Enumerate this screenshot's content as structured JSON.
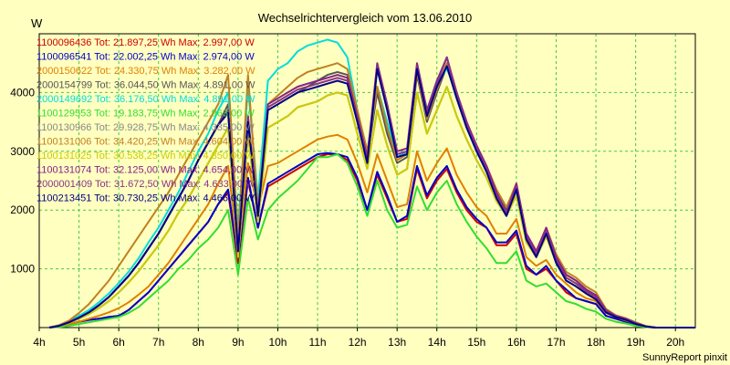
{
  "chart_data": {
    "type": "line",
    "title": "Wechselrichtervergleich vom 13.06.2010",
    "ylabel": "W",
    "footer": "SunnyReport pinxit",
    "ylim": [
      0,
      5000
    ],
    "xlim": [
      4,
      20.5
    ],
    "y_ticks": [
      1000,
      2000,
      3000,
      4000
    ],
    "x_ticks": [
      {
        "v": 4,
        "t": "4h"
      },
      {
        "v": 5,
        "t": "5h"
      },
      {
        "v": 6,
        "t": "6h"
      },
      {
        "v": 7,
        "t": "7h"
      },
      {
        "v": 8,
        "t": "8h"
      },
      {
        "v": 9,
        "t": "9h"
      },
      {
        "v": 10,
        "t": "10h"
      },
      {
        "v": 11,
        "t": "11h"
      },
      {
        "v": 12,
        "t": "12h"
      },
      {
        "v": 13,
        "t": "13h"
      },
      {
        "v": 14,
        "t": "14h"
      },
      {
        "v": 15,
        "t": "15h"
      },
      {
        "v": 16,
        "t": "16h"
      },
      {
        "v": 17,
        "t": "17h"
      },
      {
        "v": 18,
        "t": "18h"
      },
      {
        "v": 19,
        "t": "19h"
      },
      {
        "v": 20,
        "t": "20h"
      }
    ],
    "grid": true,
    "legend_position": "top-left",
    "x": [
      4.25,
      4.5,
      4.75,
      5.0,
      5.25,
      5.5,
      5.75,
      6.0,
      6.25,
      6.5,
      6.75,
      7.0,
      7.25,
      7.5,
      7.75,
      8.0,
      8.25,
      8.5,
      8.75,
      9.0,
      9.25,
      9.5,
      9.75,
      10.0,
      10.25,
      10.5,
      10.75,
      11.0,
      11.25,
      11.5,
      11.75,
      12.0,
      12.25,
      12.5,
      12.75,
      13.0,
      13.25,
      13.5,
      13.75,
      14.0,
      14.25,
      14.5,
      14.75,
      15.0,
      15.25,
      15.5,
      15.75,
      16.0,
      16.25,
      16.5,
      16.75,
      17.0,
      17.25,
      17.5,
      17.75,
      18.0,
      18.25,
      18.5,
      18.75,
      19.0,
      19.25,
      19.5,
      19.75,
      20.0,
      20.25,
      20.5
    ],
    "series": [
      {
        "name": "1100096436",
        "label": "1100096436 Tot: 21.897,25 Wh Max: 2.997,00 W",
        "color": "#cc0000",
        "values": [
          0,
          20,
          60,
          100,
          130,
          150,
          180,
          200,
          300,
          450,
          600,
          800,
          1000,
          1200,
          1400,
          1600,
          1800,
          2100,
          2300,
          1100,
          2500,
          1700,
          2400,
          2500,
          2600,
          2700,
          2800,
          2900,
          2950,
          2950,
          2850,
          2500,
          2000,
          2600,
          2200,
          1800,
          1850,
          2700,
          2200,
          2500,
          2700,
          2300,
          2000,
          1800,
          1700,
          1400,
          1400,
          1600,
          1000,
          900,
          1000,
          800,
          600,
          500,
          450,
          400,
          200,
          150,
          100,
          50,
          20,
          0,
          0,
          0,
          0,
          0
        ]
      },
      {
        "name": "1100096541",
        "label": "1100096541 Tot: 22.002,25 Wh Max: 2.974,00 W",
        "color": "#0000cc",
        "values": [
          0,
          20,
          60,
          100,
          130,
          150,
          180,
          200,
          300,
          450,
          600,
          800,
          1000,
          1200,
          1400,
          1600,
          1800,
          2100,
          2350,
          1200,
          2550,
          1700,
          2450,
          2550,
          2650,
          2750,
          2850,
          2950,
          2970,
          2950,
          2900,
          2550,
          2000,
          2650,
          2250,
          1800,
          1900,
          2750,
          2250,
          2550,
          2750,
          2350,
          2050,
          1850,
          1700,
          1450,
          1450,
          1650,
          1050,
          900,
          1050,
          800,
          650,
          500,
          450,
          400,
          200,
          150,
          100,
          50,
          20,
          0,
          0,
          0,
          0,
          0
        ]
      },
      {
        "name": "2000150622",
        "label": "2000150622 Tot: 24.330,75 Wh Max: 3.282,00 W",
        "color": "#e08000",
        "values": [
          0,
          20,
          60,
          100,
          150,
          200,
          260,
          330,
          430,
          560,
          700,
          900,
          1100,
          1350,
          1600,
          1850,
          2100,
          2450,
          2750,
          1250,
          2800,
          2000,
          2750,
          2800,
          2900,
          3000,
          3100,
          3200,
          3250,
          3280,
          3200,
          2800,
          2300,
          2950,
          2500,
          2050,
          2100,
          3000,
          2500,
          2800,
          3050,
          2600,
          2300,
          2050,
          1900,
          1600,
          1600,
          1850,
          1200,
          1050,
          1150,
          900,
          750,
          600,
          500,
          450,
          250,
          180,
          120,
          60,
          20,
          0,
          0,
          0,
          0,
          0
        ]
      },
      {
        "name": "2000154799",
        "label": "2000154799 Tot: 36.044,50 Wh Max: 4.891,00 W",
        "color": "#555555",
        "values": [
          0,
          30,
          90,
          170,
          260,
          380,
          520,
          700,
          880,
          1100,
          1350,
          1600,
          1900,
          2200,
          2500,
          2850,
          3150,
          3450,
          3800,
          1300,
          3500,
          1900,
          3700,
          3800,
          3900,
          4000,
          4100,
          4200,
          4300,
          4350,
          4300,
          3600,
          2900,
          4000,
          3300,
          2800,
          2900,
          4300,
          3500,
          4000,
          4450,
          3900,
          3400,
          3050,
          2700,
          2300,
          2000,
          2400,
          1550,
          1250,
          1650,
          1200,
          900,
          800,
          650,
          550,
          300,
          200,
          150,
          80,
          20,
          0,
          0,
          0,
          0,
          0
        ]
      },
      {
        "name": "2000149692",
        "label": "2000149692 Tot: 36.176,50 Wh Max: 4.891,00 W",
        "color": "#00dddd",
        "values": [
          0,
          40,
          110,
          200,
          300,
          430,
          580,
          760,
          950,
          1180,
          1450,
          1700,
          2000,
          2300,
          2650,
          3000,
          3300,
          3700,
          4000,
          1700,
          4100,
          2200,
          4200,
          4400,
          4500,
          4700,
          4800,
          4850,
          4900,
          4850,
          4600,
          3700,
          3000,
          4100,
          3500,
          2900,
          3000,
          4400,
          3700,
          4200,
          4400,
          4000,
          3500,
          3000,
          2700,
          2200,
          1900,
          2300,
          1500,
          1200,
          1600,
          1150,
          850,
          750,
          620,
          520,
          280,
          190,
          140,
          70,
          20,
          0,
          0,
          0,
          0,
          0
        ]
      },
      {
        "name": "1100129553",
        "label": "1100129553 Tot: 19.183,75 Wh Max: 2.963,00 W",
        "color": "#33dd33",
        "values": [
          0,
          10,
          30,
          60,
          90,
          120,
          150,
          180,
          250,
          350,
          500,
          650,
          800,
          1000,
          1150,
          1350,
          1500,
          1700,
          2000,
          900,
          2200,
          1500,
          2000,
          2200,
          2350,
          2500,
          2700,
          2900,
          2900,
          2950,
          2800,
          2400,
          1900,
          2500,
          2000,
          1700,
          1750,
          2400,
          2000,
          2300,
          2500,
          2100,
          1800,
          1550,
          1350,
          1100,
          1100,
          1300,
          800,
          700,
          750,
          600,
          450,
          400,
          320,
          270,
          150,
          100,
          70,
          30,
          10,
          0,
          0,
          0,
          0,
          0
        ]
      },
      {
        "name": "1100130966",
        "label": "1100130966 Tot: 29.928,75 Wh Max: 4.335,00 W",
        "color": "#888888",
        "values": [
          0,
          25,
          80,
          150,
          230,
          330,
          450,
          600,
          770,
          960,
          1180,
          1400,
          1650,
          1950,
          2200,
          2500,
          2800,
          3100,
          3400,
          1200,
          3300,
          1800,
          3400,
          3500,
          3600,
          3750,
          3800,
          3850,
          3950,
          4000,
          3950,
          3300,
          2700,
          3700,
          3100,
          2600,
          2700,
          4000,
          3300,
          3700,
          4100,
          3600,
          3200,
          2850,
          2550,
          2150,
          1900,
          2250,
          1450,
          1200,
          1550,
          1100,
          850,
          750,
          600,
          500,
          280,
          190,
          140,
          70,
          20,
          0,
          0,
          0,
          0,
          0
        ]
      },
      {
        "name": "1100131006",
        "label": "1100131006 Tot: 34.420,25 Wh Max: 4.604,00 W",
        "color": "#c08020",
        "values": [
          0,
          40,
          120,
          250,
          400,
          600,
          800,
          1050,
          1300,
          1550,
          1800,
          2050,
          2300,
          2600,
          2900,
          3200,
          3500,
          3800,
          4300,
          1500,
          4300,
          2000,
          3800,
          3950,
          4100,
          4250,
          4350,
          4400,
          4450,
          4500,
          4400,
          3700,
          3000,
          4100,
          3400,
          2850,
          2950,
          4350,
          3550,
          4050,
          4500,
          3950,
          3450,
          3100,
          2750,
          2350,
          2050,
          2450,
          1600,
          1300,
          1700,
          1250,
          950,
          850,
          700,
          600,
          320,
          210,
          160,
          90,
          30,
          0,
          0,
          0,
          0,
          0
        ]
      },
      {
        "name": "1100131025",
        "label": "1100131025 Tot: 30.538,25 Wh Max: 4.350,00 W",
        "color": "#cccc00",
        "values": [
          0,
          25,
          80,
          150,
          230,
          330,
          450,
          600,
          770,
          960,
          1180,
          1400,
          1650,
          1950,
          2200,
          2500,
          2800,
          3100,
          3400,
          1200,
          3300,
          1800,
          3400,
          3500,
          3600,
          3750,
          3800,
          3850,
          3950,
          4000,
          3950,
          3300,
          2700,
          3700,
          3100,
          2600,
          2700,
          4000,
          3300,
          3700,
          4100,
          3600,
          3200,
          2850,
          2550,
          2150,
          1900,
          2250,
          1450,
          1200,
          1550,
          1100,
          850,
          750,
          600,
          500,
          280,
          190,
          140,
          70,
          20,
          0,
          0,
          0,
          0,
          0
        ]
      },
      {
        "name": "1100131074",
        "label": "1100131074 Tot: 32.125,00 Wh Max: 4.654,00 W",
        "color": "#882288",
        "values": [
          0,
          30,
          90,
          170,
          260,
          380,
          520,
          700,
          880,
          1100,
          1350,
          1600,
          1900,
          2200,
          2500,
          2850,
          3150,
          3450,
          3700,
          1300,
          3600,
          1900,
          3800,
          3900,
          4000,
          4100,
          4150,
          4200,
          4250,
          4300,
          4250,
          3600,
          2900,
          4500,
          3800,
          3000,
          3050,
          4500,
          3700,
          4200,
          4600,
          4000,
          3500,
          3100,
          2750,
          2300,
          1950,
          2450,
          1600,
          1300,
          1700,
          1200,
          900,
          800,
          650,
          550,
          300,
          200,
          150,
          80,
          20,
          0,
          0,
          0,
          0,
          0
        ]
      },
      {
        "name": "2000001409",
        "label": "2000001409 Tot: 31.672,50 Wh Max: 4.633,00 W",
        "color": "#883388",
        "values": [
          0,
          30,
          90,
          170,
          260,
          380,
          520,
          700,
          880,
          1100,
          1350,
          1600,
          1900,
          2200,
          2500,
          2850,
          3150,
          3450,
          3700,
          1300,
          3550,
          1900,
          3750,
          3850,
          3950,
          4050,
          4100,
          4150,
          4200,
          4250,
          4200,
          3550,
          2850,
          4450,
          3750,
          2950,
          3000,
          4450,
          3650,
          4150,
          4600,
          3950,
          3450,
          3050,
          2700,
          2250,
          1950,
          2400,
          1550,
          1250,
          1650,
          1150,
          850,
          750,
          620,
          520,
          280,
          190,
          140,
          70,
          20,
          0,
          0,
          0,
          0,
          0
        ]
      },
      {
        "name": "1100213451",
        "label": "1100213451 Tot: 30.730,25 Wh Max: 4.466,00 W",
        "color": "#000088",
        "values": [
          0,
          30,
          90,
          170,
          260,
          380,
          520,
          700,
          880,
          1100,
          1350,
          1600,
          1900,
          2200,
          2500,
          2850,
          3150,
          3450,
          3650,
          1300,
          3500,
          1900,
          3700,
          3800,
          3900,
          4000,
          4050,
          4100,
          4150,
          4200,
          4150,
          3500,
          2800,
          4400,
          3700,
          2900,
          2950,
          4400,
          3600,
          4100,
          4450,
          3900,
          3400,
          3000,
          2650,
          2200,
          1900,
          2350,
          1500,
          1200,
          1600,
          1100,
          800,
          700,
          580,
          480,
          260,
          180,
          130,
          60,
          20,
          0,
          0,
          0,
          0,
          0
        ]
      }
    ]
  }
}
